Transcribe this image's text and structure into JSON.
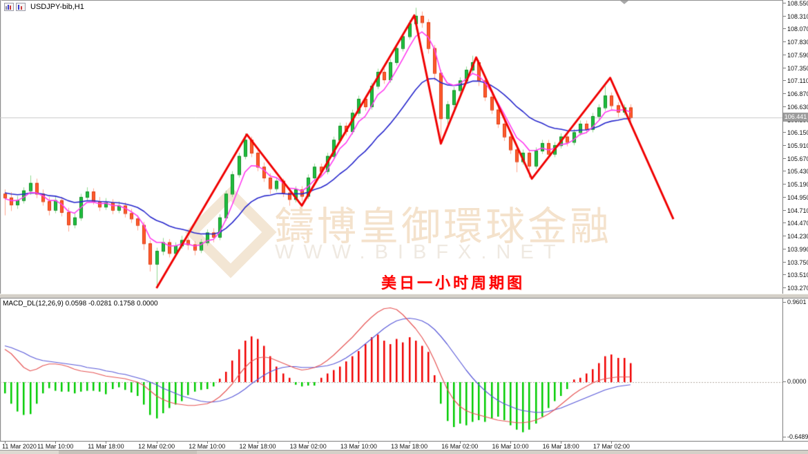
{
  "window": {
    "symbol": "USDJPY-bib,H1",
    "icons": [
      "bar-chart-icon",
      "candlestick-chart-icon"
    ]
  },
  "watermark": {
    "brand_cn": "鑄博皇御環球金融",
    "brand_url": "WWW.BIBFX.NET"
  },
  "annotation": {
    "title_cn": "美日一小时周期图",
    "title_color": "#fe0000"
  },
  "main_chart": {
    "current_price": "106.441",
    "price_ticks": [
      "108.550",
      "108.310",
      "108.070",
      "107.830",
      "107.590",
      "107.350",
      "107.110",
      "106.870",
      "106.630",
      "106.390",
      "106.150",
      "105.910",
      "105.670",
      "105.430",
      "105.190",
      "104.950",
      "104.710",
      "104.470",
      "104.230",
      "103.990",
      "103.750",
      "103.510",
      "103.270"
    ]
  },
  "macd": {
    "label": "MACD_DL(12,26,9) 0.0598 -0.0281 0.1758 0.0000",
    "axis_top": "0.9601",
    "axis_zero": "0.0000",
    "axis_bottom": "-0.6489"
  },
  "time_axis": {
    "labels": [
      "11 Mar 2020",
      "11 Mar 10:00",
      "11 Mar 18:00",
      "12 Mar 02:00",
      "12 Mar 10:00",
      "12 Mar 18:00",
      "13 Mar 02:00",
      "13 Mar 10:00",
      "13 Mar 18:00",
      "16 Mar 02:00",
      "16 Mar 10:00",
      "16 Mar 18:00",
      "17 Mar 02:00"
    ],
    "candles_per_tick": 8
  },
  "colors": {
    "bull_fill": "#1fbf3f",
    "bull_border": "#0e8c22",
    "bull_wick": "#8fd98f",
    "bear_fill": "#ff5a2d",
    "bear_border": "#dd3a0e",
    "bear_wick": "#ffa58c",
    "ma_fast": "#ff3cf0",
    "ma_slow": "#2626cc",
    "zigzag": "#f00202",
    "macd_hist_pos": "#f00000",
    "macd_hist_neg": "#00cc00",
    "macd_line": "#e65454",
    "macd_signal": "#5858d8",
    "current_price_line": "#c9c9c9"
  },
  "chart_data": [
    {
      "type": "candlestick",
      "title": "USDJPY-bib,H1",
      "ylabel": "price",
      "ylim": [
        103.15,
        108.58
      ],
      "y_tick_step": 0.24,
      "current_price": 106.441,
      "grid": "current-price-line-only",
      "candles": [
        [
          105.02,
          105.1,
          104.62,
          104.95
        ],
        [
          104.95,
          105.05,
          104.7,
          104.82
        ],
        [
          104.82,
          104.98,
          104.74,
          104.9
        ],
        [
          104.9,
          105.14,
          104.84,
          105.08
        ],
        [
          105.08,
          105.36,
          105.0,
          105.22
        ],
        [
          105.22,
          105.3,
          104.94,
          105.02
        ],
        [
          105.02,
          105.1,
          104.8,
          104.88
        ],
        [
          104.88,
          104.96,
          104.62,
          104.72
        ],
        [
          104.72,
          104.98,
          104.66,
          104.9
        ],
        [
          104.9,
          104.96,
          104.6,
          104.68
        ],
        [
          104.68,
          104.76,
          104.32,
          104.45
        ],
        [
          104.45,
          104.66,
          104.38,
          104.58
        ],
        [
          104.58,
          105.02,
          104.52,
          104.96
        ],
        [
          104.96,
          105.14,
          104.9,
          105.06
        ],
        [
          105.06,
          105.12,
          104.82,
          104.88
        ],
        [
          104.88,
          104.96,
          104.7,
          104.78
        ],
        [
          104.78,
          104.94,
          104.72,
          104.86
        ],
        [
          104.86,
          104.92,
          104.64,
          104.72
        ],
        [
          104.72,
          104.88,
          104.66,
          104.8
        ],
        [
          104.8,
          104.86,
          104.58,
          104.66
        ],
        [
          104.66,
          104.74,
          104.48,
          104.56
        ],
        [
          104.56,
          104.62,
          104.34,
          104.44
        ],
        [
          104.44,
          104.5,
          103.98,
          104.1
        ],
        [
          104.1,
          104.16,
          103.58,
          103.72
        ],
        [
          103.72,
          104.02,
          103.28,
          103.96
        ],
        [
          103.96,
          104.2,
          103.88,
          104.12
        ],
        [
          104.12,
          104.18,
          103.84,
          103.92
        ],
        [
          103.92,
          104.12,
          103.86,
          104.06
        ],
        [
          104.06,
          104.24,
          104.0,
          104.16
        ],
        [
          104.16,
          104.22,
          103.98,
          104.08
        ],
        [
          104.08,
          104.14,
          103.88,
          103.98
        ],
        [
          103.98,
          104.18,
          103.92,
          104.12
        ],
        [
          104.12,
          104.36,
          104.06,
          104.3
        ],
        [
          104.3,
          104.38,
          104.12,
          104.22
        ],
        [
          104.22,
          104.64,
          104.16,
          104.58
        ],
        [
          104.58,
          105.08,
          104.52,
          105.02
        ],
        [
          105.02,
          105.44,
          104.96,
          105.38
        ],
        [
          105.38,
          105.78,
          105.32,
          105.72
        ],
        [
          105.72,
          106.14,
          105.66,
          106.02
        ],
        [
          106.02,
          106.08,
          105.7,
          105.78
        ],
        [
          105.78,
          105.84,
          105.44,
          105.52
        ],
        [
          105.52,
          105.6,
          105.24,
          105.32
        ],
        [
          105.32,
          105.4,
          105.02,
          105.12
        ],
        [
          105.12,
          105.32,
          105.06,
          105.26
        ],
        [
          105.26,
          105.3,
          104.96,
          105.04
        ],
        [
          105.04,
          105.1,
          104.8,
          104.92
        ],
        [
          104.92,
          105.16,
          104.86,
          105.1
        ],
        [
          105.1,
          105.16,
          104.88,
          104.98
        ],
        [
          104.98,
          105.38,
          104.92,
          105.32
        ],
        [
          105.32,
          105.58,
          105.26,
          105.52
        ],
        [
          105.52,
          105.58,
          105.36,
          105.44
        ],
        [
          105.44,
          105.78,
          105.38,
          105.72
        ],
        [
          105.72,
          106.08,
          105.66,
          106.02
        ],
        [
          106.02,
          106.34,
          105.96,
          106.28
        ],
        [
          106.28,
          106.34,
          106.1,
          106.18
        ],
        [
          106.18,
          106.58,
          106.12,
          106.52
        ],
        [
          106.52,
          106.84,
          106.46,
          106.78
        ],
        [
          106.78,
          106.84,
          106.56,
          106.64
        ],
        [
          106.64,
          107.08,
          106.58,
          107.02
        ],
        [
          107.02,
          107.34,
          106.96,
          107.28
        ],
        [
          107.28,
          107.34,
          107.06,
          107.14
        ],
        [
          107.14,
          107.52,
          107.08,
          107.46
        ],
        [
          107.46,
          107.78,
          107.4,
          107.72
        ],
        [
          107.72,
          108.0,
          107.66,
          107.94
        ],
        [
          107.94,
          108.24,
          107.88,
          108.18
        ],
        [
          108.18,
          108.47,
          108.06,
          108.32
        ],
        [
          108.32,
          108.4,
          108.1,
          108.2
        ],
        [
          108.2,
          108.26,
          107.62,
          107.72
        ],
        [
          107.72,
          107.78,
          107.12,
          107.26
        ],
        [
          107.26,
          107.32,
          105.96,
          106.42
        ],
        [
          106.42,
          106.74,
          106.3,
          106.68
        ],
        [
          106.68,
          107.0,
          106.6,
          106.94
        ],
        [
          106.94,
          107.18,
          106.86,
          107.12
        ],
        [
          107.12,
          107.38,
          107.06,
          107.32
        ],
        [
          107.32,
          107.58,
          107.26,
          107.46
        ],
        [
          107.46,
          107.5,
          107.02,
          107.12
        ],
        [
          107.12,
          107.18,
          106.74,
          106.82
        ],
        [
          106.82,
          106.88,
          106.5,
          106.58
        ],
        [
          106.58,
          106.64,
          106.24,
          106.32
        ],
        [
          106.32,
          106.38,
          106.0,
          106.08
        ],
        [
          106.08,
          106.14,
          105.76,
          105.84
        ],
        [
          105.84,
          105.9,
          105.42,
          105.62
        ],
        [
          105.62,
          105.84,
          105.56,
          105.78
        ],
        [
          105.78,
          105.82,
          105.32,
          105.54
        ],
        [
          105.54,
          105.88,
          105.48,
          105.82
        ],
        [
          105.82,
          106.02,
          105.76,
          105.96
        ],
        [
          105.96,
          106.02,
          105.68,
          105.76
        ],
        [
          105.76,
          105.98,
          105.7,
          105.92
        ],
        [
          105.92,
          106.14,
          105.86,
          106.08
        ],
        [
          106.08,
          106.14,
          105.9,
          105.98
        ],
        [
          105.98,
          106.22,
          105.92,
          106.16
        ],
        [
          106.16,
          106.38,
          106.1,
          106.32
        ],
        [
          106.32,
          106.38,
          106.14,
          106.22
        ],
        [
          106.22,
          106.52,
          106.16,
          106.46
        ],
        [
          106.46,
          106.68,
          106.4,
          106.62
        ],
        [
          106.62,
          107.02,
          106.56,
          106.84
        ],
        [
          106.84,
          106.9,
          106.58,
          106.66
        ],
        [
          106.66,
          106.72,
          106.44,
          106.54
        ],
        [
          106.54,
          106.68,
          106.48,
          106.62
        ],
        [
          106.62,
          106.68,
          106.36,
          106.44
        ]
      ],
      "moving_averages": [
        {
          "name": "fast-lwma",
          "period": 5,
          "color": "#ff3cf0"
        },
        {
          "name": "slow-ema",
          "period": 18,
          "color": "#2626cc"
        }
      ],
      "zigzag": [
        [
          24,
          103.27
        ],
        [
          38.3,
          106.12
        ],
        [
          47,
          104.8
        ],
        [
          64.8,
          108.33
        ],
        [
          69,
          105.95
        ],
        [
          74.6,
          107.55
        ],
        [
          83.4,
          105.3
        ],
        [
          95.8,
          107.17
        ],
        [
          105.8,
          104.55
        ]
      ]
    },
    {
      "type": "bar",
      "title": "MACD_DL(12,26,9)",
      "values_label": "0.0598 -0.0281 0.1758 0.0000",
      "ylim": [
        -0.6489,
        0.9601
      ],
      "zero_line": 0.0,
      "histogram": [
        -0.13,
        -0.25,
        -0.34,
        -0.38,
        -0.37,
        -0.25,
        -0.13,
        -0.07,
        -0.1,
        -0.11,
        -0.11,
        -0.13,
        -0.11,
        -0.1,
        -0.1,
        -0.11,
        -0.14,
        -0.08,
        -0.06,
        -0.09,
        -0.12,
        -0.16,
        -0.26,
        -0.38,
        -0.42,
        -0.36,
        -0.3,
        -0.26,
        -0.22,
        -0.15,
        -0.11,
        -0.09,
        -0.08,
        -0.05,
        0.04,
        0.12,
        0.25,
        0.38,
        0.48,
        0.53,
        0.5,
        0.42,
        0.3,
        0.18,
        0.1,
        0.05,
        -0.03,
        -0.05,
        -0.04,
        -0.04,
        0.05,
        0.1,
        0.14,
        0.18,
        0.24,
        0.3,
        0.36,
        0.44,
        0.52,
        0.55,
        0.48,
        0.44,
        0.5,
        0.46,
        0.52,
        0.48,
        0.42,
        0.35,
        0.08,
        -0.25,
        -0.45,
        -0.52,
        -0.48,
        -0.5,
        -0.46,
        -0.44,
        -0.46,
        -0.42,
        -0.4,
        -0.44,
        -0.5,
        -0.55,
        -0.58,
        -0.55,
        -0.48,
        -0.4,
        -0.3,
        -0.22,
        -0.16,
        -0.08,
        0.03,
        0.05,
        0.1,
        0.15,
        0.22,
        0.3,
        0.32,
        0.28,
        0.28,
        0.22
      ],
      "macd_line": [
        0.38,
        0.33,
        0.25,
        0.17,
        0.13,
        0.15,
        0.19,
        0.21,
        0.21,
        0.2,
        0.18,
        0.15,
        0.13,
        0.12,
        0.11,
        0.09,
        0.07,
        0.06,
        0.05,
        0.04,
        0.02,
        0.0,
        -0.04,
        -0.1,
        -0.16,
        -0.2,
        -0.23,
        -0.25,
        -0.26,
        -0.27,
        -0.27,
        -0.26,
        -0.25,
        -0.22,
        -0.17,
        -0.1,
        -0.02,
        0.08,
        0.17,
        0.24,
        0.28,
        0.29,
        0.28,
        0.25,
        0.22,
        0.19,
        0.16,
        0.14,
        0.15,
        0.17,
        0.2,
        0.25,
        0.31,
        0.38,
        0.45,
        0.52,
        0.6,
        0.68,
        0.75,
        0.81,
        0.85,
        0.86,
        0.84,
        0.78,
        0.7,
        0.62,
        0.52,
        0.4,
        0.25,
        0.08,
        -0.08,
        -0.2,
        -0.28,
        -0.33,
        -0.36,
        -0.38,
        -0.4,
        -0.42,
        -0.44,
        -0.45,
        -0.46,
        -0.47,
        -0.47,
        -0.46,
        -0.44,
        -0.41,
        -0.37,
        -0.32,
        -0.26,
        -0.2,
        -0.14,
        -0.09,
        -0.05,
        -0.01,
        0.02,
        0.04,
        0.05,
        0.06,
        0.06,
        0.06
      ],
      "signal_line": [
        0.42,
        0.4,
        0.37,
        0.34,
        0.3,
        0.27,
        0.25,
        0.24,
        0.23,
        0.22,
        0.21,
        0.2,
        0.19,
        0.17,
        0.16,
        0.15,
        0.13,
        0.12,
        0.1,
        0.09,
        0.07,
        0.05,
        0.03,
        0.0,
        -0.03,
        -0.07,
        -0.1,
        -0.13,
        -0.16,
        -0.18,
        -0.2,
        -0.22,
        -0.23,
        -0.23,
        -0.22,
        -0.2,
        -0.17,
        -0.13,
        -0.08,
        -0.02,
        0.03,
        0.08,
        0.12,
        0.15,
        0.17,
        0.18,
        0.18,
        0.17,
        0.17,
        0.17,
        0.18,
        0.19,
        0.21,
        0.24,
        0.28,
        0.33,
        0.38,
        0.44,
        0.5,
        0.56,
        0.62,
        0.67,
        0.71,
        0.73,
        0.74,
        0.73,
        0.71,
        0.67,
        0.61,
        0.53,
        0.44,
        0.34,
        0.24,
        0.14,
        0.05,
        -0.03,
        -0.1,
        -0.16,
        -0.21,
        -0.25,
        -0.28,
        -0.31,
        -0.33,
        -0.34,
        -0.35,
        -0.35,
        -0.34,
        -0.32,
        -0.3,
        -0.27,
        -0.24,
        -0.21,
        -0.18,
        -0.15,
        -0.12,
        -0.09,
        -0.07,
        -0.05,
        -0.04,
        -0.03
      ]
    }
  ]
}
